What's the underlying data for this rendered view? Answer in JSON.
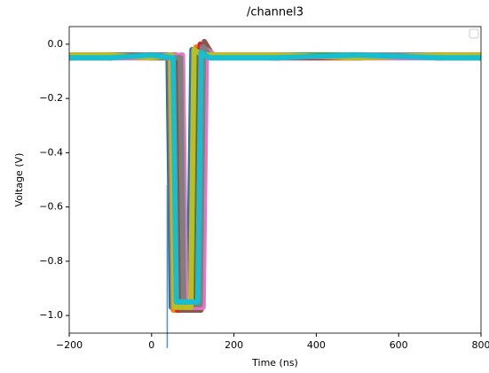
{
  "chart_data": {
    "type": "line",
    "title": "/channel3",
    "x_label": "Time (ns)",
    "y_label": "Voltage (V)",
    "xlim": [
      -200,
      800
    ],
    "ylim": [
      -1.065,
      0.065
    ],
    "xticks": [
      {
        "value": -200,
        "label": "−200"
      },
      0,
      200,
      400,
      600,
      800
    ],
    "yticks": [
      {
        "value": -1.0,
        "label": "−1.0"
      },
      {
        "value": -0.8,
        "label": "−0.8"
      },
      {
        "value": -0.6,
        "label": "−0.6"
      },
      {
        "value": -0.4,
        "label": "−0.4"
      },
      {
        "value": -0.2,
        "label": "−0.2"
      },
      {
        "value": 0,
        "label": "0.0"
      }
    ],
    "series": [
      {
        "color": "#1f77b4",
        "x": [
          -200,
          -100,
          0,
          40,
          48,
          90,
          98,
          118,
          300,
          500,
          700,
          800
        ],
        "values": [
          -0.04,
          -0.05,
          -0.04,
          -0.04,
          -0.97,
          -0.97,
          -0.02,
          -0.04,
          -0.05,
          -0.04,
          -0.05,
          -0.04
        ]
      },
      {
        "color": "#ff7f0e",
        "x": [
          -200,
          -100,
          0,
          45,
          53,
          100,
          108,
          128,
          300,
          500,
          700,
          800
        ],
        "values": [
          -0.05,
          -0.04,
          -0.05,
          -0.05,
          -0.98,
          -0.98,
          -0.01,
          -0.04,
          -0.04,
          -0.05,
          -0.04,
          -0.05
        ]
      },
      {
        "color": "#2ca02c",
        "x": [
          -200,
          -100,
          0,
          50,
          58,
          105,
          113,
          133,
          300,
          500,
          700,
          800
        ],
        "values": [
          -0.04,
          -0.04,
          -0.05,
          -0.04,
          -0.97,
          -0.97,
          -0.02,
          -0.05,
          -0.04,
          -0.04,
          -0.05,
          -0.04
        ]
      },
      {
        "color": "#d62728",
        "x": [
          -200,
          -100,
          0,
          55,
          63,
          110,
          118,
          138,
          300,
          500,
          700,
          800
        ],
        "values": [
          -0.05,
          -0.05,
          -0.04,
          -0.05,
          -0.98,
          -0.98,
          0.0,
          -0.04,
          -0.05,
          -0.05,
          -0.04,
          -0.05
        ]
      },
      {
        "color": "#9467bd",
        "x": [
          -200,
          -100,
          0,
          60,
          68,
          115,
          123,
          143,
          300,
          500,
          700,
          800
        ],
        "values": [
          -0.04,
          -0.05,
          -0.04,
          -0.04,
          -0.97,
          -0.97,
          -0.01,
          -0.05,
          -0.04,
          -0.05,
          -0.04,
          -0.04
        ]
      },
      {
        "color": "#8c564b",
        "x": [
          -200,
          -100,
          0,
          65,
          73,
          120,
          128,
          148,
          300,
          500,
          700,
          800
        ],
        "values": [
          -0.05,
          -0.04,
          -0.04,
          -0.05,
          -0.98,
          -0.98,
          0.01,
          -0.04,
          -0.05,
          -0.04,
          -0.05,
          -0.05
        ]
      },
      {
        "color": "#e377c2",
        "x": [
          -200,
          -100,
          0,
          75,
          83,
          125,
          133,
          153,
          300,
          500,
          700,
          800
        ],
        "values": [
          -0.04,
          -0.05,
          -0.05,
          -0.04,
          -0.97,
          -0.97,
          -0.02,
          -0.04,
          -0.04,
          -0.05,
          -0.05,
          -0.04
        ]
      },
      {
        "color": "#7f7f7f",
        "x": [
          -200,
          -100,
          0,
          70,
          78,
          118,
          126,
          146,
          300,
          500,
          700,
          800
        ],
        "values": [
          -0.05,
          -0.04,
          -0.05,
          -0.05,
          -0.96,
          -0.96,
          -0.01,
          -0.05,
          -0.05,
          -0.04,
          -0.04,
          -0.05
        ]
      },
      {
        "color": "#bcbd22",
        "x": [
          -200,
          -100,
          0,
          48,
          56,
          95,
          103,
          123,
          300,
          500,
          700,
          800
        ],
        "values": [
          -0.04,
          -0.04,
          -0.05,
          -0.04,
          -0.97,
          -0.97,
          -0.02,
          -0.04,
          -0.04,
          -0.05,
          -0.04,
          -0.04
        ]
      },
      {
        "color": "#17becf",
        "x": [
          -200,
          -100,
          0,
          52,
          60,
          112,
          120,
          140,
          300,
          500,
          700,
          800
        ],
        "values": [
          -0.05,
          -0.05,
          -0.04,
          -0.05,
          -0.95,
          -0.95,
          -0.03,
          -0.05,
          -0.05,
          -0.04,
          -0.05,
          -0.05
        ]
      },
      {
        "color": "#4a90e2",
        "x": [
          38,
          38
        ],
        "values": [
          -0.52,
          -1.12
        ]
      }
    ]
  }
}
